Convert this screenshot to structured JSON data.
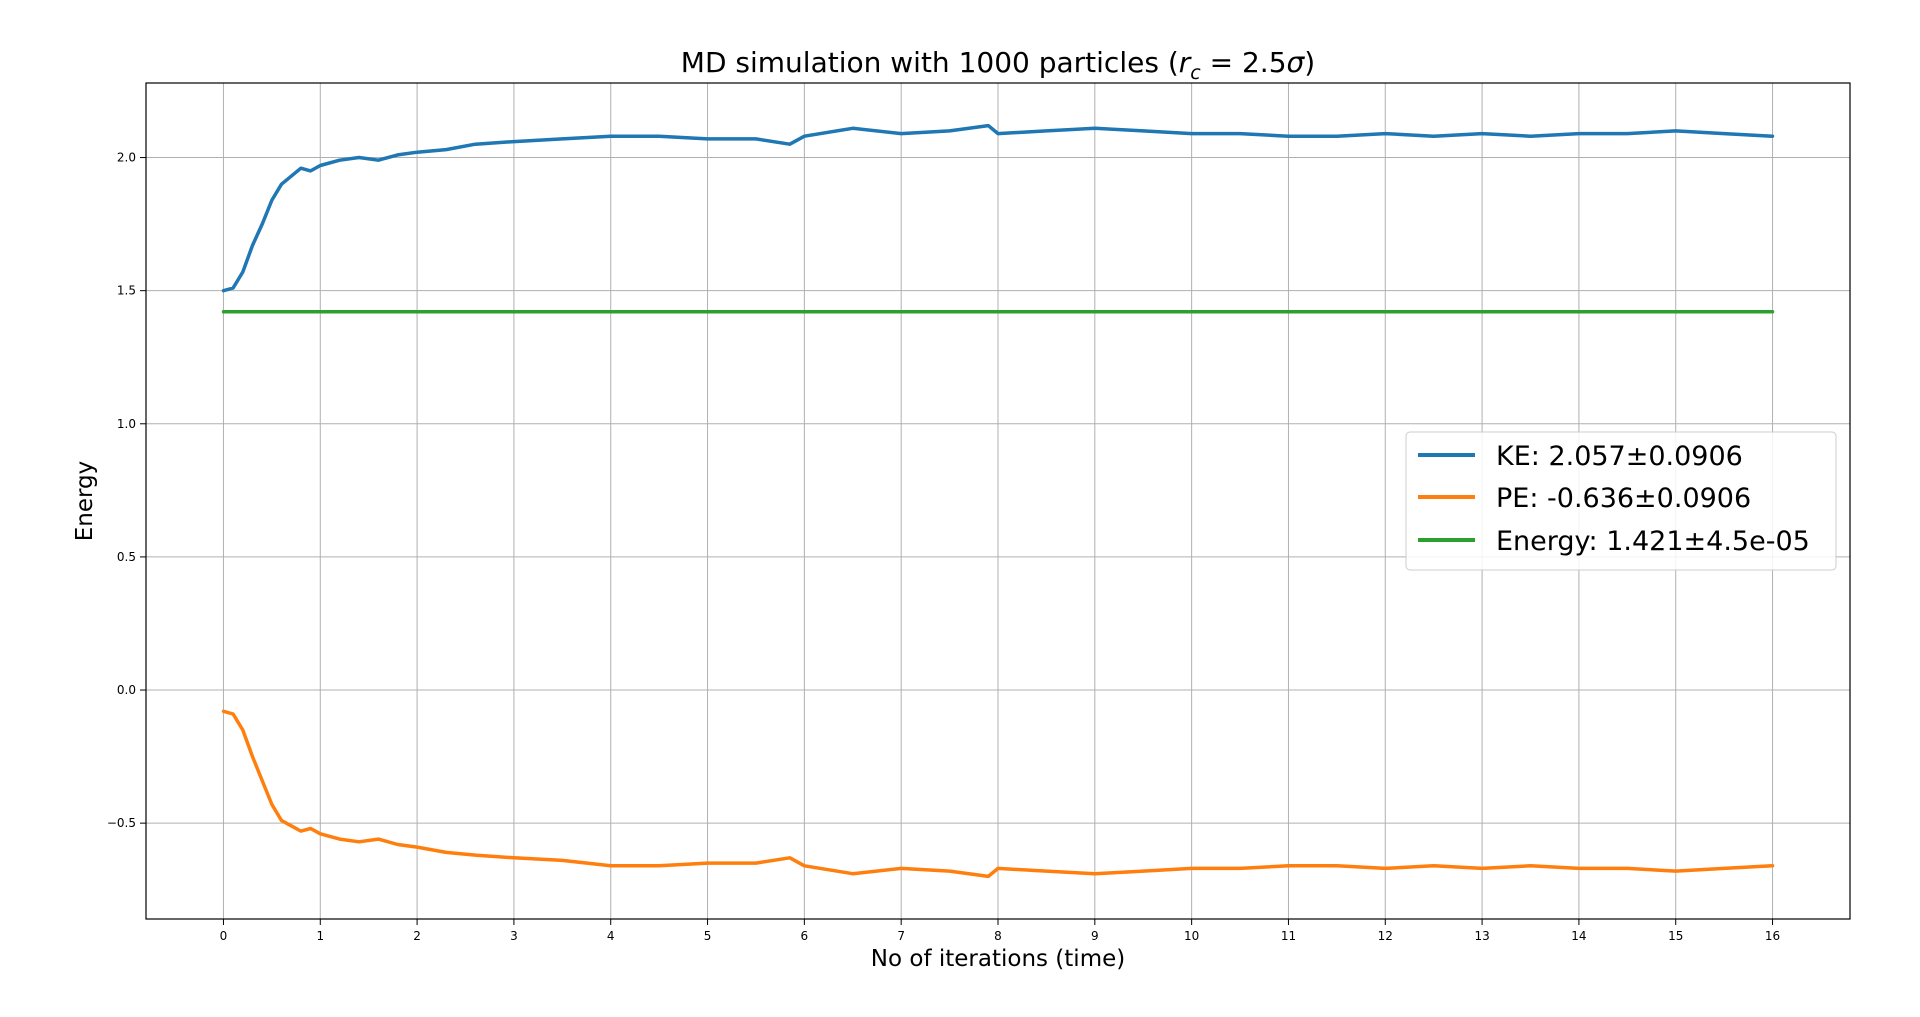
{
  "chart_data": {
    "type": "line",
    "title": "MD simulation with 1000 particles (r_c = 2.5σ)",
    "title_parts": {
      "prefix": "MD simulation with 1000 particles (",
      "var": "r",
      "sub": "c",
      "eq": " = 2.5",
      "sigma": "σ",
      "suffix": ")"
    },
    "xlabel": "No of iterations (time)",
    "ylabel": "Energy",
    "xlim": [
      -0.8,
      16.8
    ],
    "ylim": [
      -0.86,
      2.28
    ],
    "x_ticks": [
      0,
      1,
      2,
      3,
      4,
      5,
      6,
      7,
      8,
      9,
      10,
      11,
      12,
      13,
      14,
      15,
      16
    ],
    "y_ticks": [
      -0.5,
      0.0,
      0.5,
      1.0,
      1.5,
      2.0
    ],
    "y_tick_labels": [
      "−0.5",
      "0.0",
      "0.5",
      "1.0",
      "1.5",
      "2.0"
    ],
    "grid": true,
    "legend_position": "center-right",
    "series": [
      {
        "name": "KE: 2.057±0.0906",
        "color": "#1f77b4",
        "x": [
          0,
          0.1,
          0.2,
          0.3,
          0.4,
          0.5,
          0.6,
          0.7,
          0.8,
          0.9,
          1.0,
          1.2,
          1.4,
          1.6,
          1.8,
          2.0,
          2.3,
          2.6,
          3.0,
          3.5,
          4.0,
          4.5,
          5.0,
          5.5,
          5.85,
          6.0,
          6.5,
          7.0,
          7.5,
          7.9,
          8.0,
          8.5,
          9.0,
          9.5,
          10.0,
          10.5,
          11.0,
          11.5,
          12.0,
          12.5,
          13.0,
          13.5,
          14.0,
          14.5,
          15.0,
          15.5,
          16.0
        ],
        "values": [
          1.5,
          1.51,
          1.57,
          1.67,
          1.75,
          1.84,
          1.9,
          1.93,
          1.96,
          1.95,
          1.97,
          1.99,
          2.0,
          1.99,
          2.01,
          2.02,
          2.03,
          2.05,
          2.06,
          2.07,
          2.08,
          2.08,
          2.07,
          2.07,
          2.05,
          2.08,
          2.11,
          2.09,
          2.1,
          2.12,
          2.09,
          2.1,
          2.11,
          2.1,
          2.09,
          2.09,
          2.08,
          2.08,
          2.09,
          2.08,
          2.09,
          2.08,
          2.09,
          2.09,
          2.1,
          2.09,
          2.08
        ]
      },
      {
        "name": "PE: -0.636±0.0906",
        "color": "#ff7f0e",
        "x": [
          0,
          0.1,
          0.2,
          0.3,
          0.4,
          0.5,
          0.6,
          0.7,
          0.8,
          0.9,
          1.0,
          1.2,
          1.4,
          1.6,
          1.8,
          2.0,
          2.3,
          2.6,
          3.0,
          3.5,
          4.0,
          4.5,
          5.0,
          5.5,
          5.85,
          6.0,
          6.5,
          7.0,
          7.5,
          7.9,
          8.0,
          8.5,
          9.0,
          9.5,
          10.0,
          10.5,
          11.0,
          11.5,
          12.0,
          12.5,
          13.0,
          13.5,
          14.0,
          14.5,
          15.0,
          15.5,
          16.0
        ],
        "values": [
          -0.08,
          -0.09,
          -0.15,
          -0.25,
          -0.34,
          -0.43,
          -0.49,
          -0.51,
          -0.53,
          -0.52,
          -0.54,
          -0.56,
          -0.57,
          -0.56,
          -0.58,
          -0.59,
          -0.61,
          -0.62,
          -0.63,
          -0.64,
          -0.66,
          -0.66,
          -0.65,
          -0.65,
          -0.63,
          -0.66,
          -0.69,
          -0.67,
          -0.68,
          -0.7,
          -0.67,
          -0.68,
          -0.69,
          -0.68,
          -0.67,
          -0.67,
          -0.66,
          -0.66,
          -0.67,
          -0.66,
          -0.67,
          -0.66,
          -0.67,
          -0.67,
          -0.68,
          -0.67,
          -0.66
        ]
      },
      {
        "name": "Energy: 1.421±4.5e-05",
        "color": "#2ca02c",
        "x": [
          0,
          16
        ],
        "values": [
          1.421,
          1.421
        ]
      }
    ]
  }
}
